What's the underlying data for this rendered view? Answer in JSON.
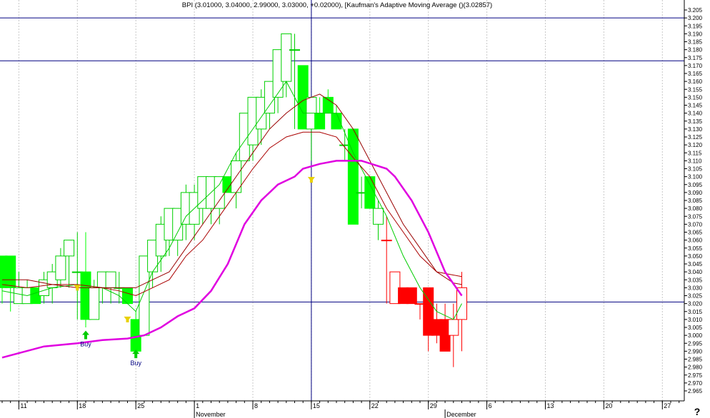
{
  "title": "BPI (3.01000, 3.04000, 2.99000, 3.03000, +0.02000), [Kaufman's Adaptive Moving Average ()(3.02857)",
  "help_glyph": "?",
  "colors": {
    "background": "#ffffff",
    "grid": "#c8c8c8",
    "crosshair": "#000080",
    "up_fill": "#ffffff",
    "up_outline": "#00d000",
    "green_fill": "#00ff00",
    "red_fill": "#ff0000",
    "red_outline": "#ff0000",
    "ma_fast": "#00cc00",
    "ma_mid": "#aa0000",
    "ma_slow": "#990000",
    "kama": "#e000e0",
    "buy_arrow": "#00cc00",
    "buy_text": "#000080",
    "marker": "#e8d000"
  },
  "chart_data": {
    "type": "candlestick",
    "title": "BPI (3.01000, 3.04000, 2.99000, 3.03000, +0.02000), [Kaufman's Adaptive Moving Average ()(3.02857)",
    "ylim": [
      2.962,
      3.213
    ],
    "ytick_labels": [
      "3.205",
      "3.200",
      "3.195",
      "3.190",
      "3.185",
      "3.180",
      "3.175",
      "3.170",
      "3.165",
      "3.160",
      "3.155",
      "3.150",
      "3.145",
      "3.140",
      "3.135",
      "3.130",
      "3.125",
      "3.120",
      "3.115",
      "3.110",
      "3.105",
      "3.100",
      "3.095",
      "3.090",
      "3.085",
      "3.080",
      "3.075",
      "3.070",
      "3.065",
      "3.060",
      "3.055",
      "3.050",
      "3.045",
      "3.040",
      "3.035",
      "3.030",
      "3.025",
      "3.020",
      "3.015",
      "3.010",
      "3.005",
      "3.000",
      "2.995",
      "2.990",
      "2.985",
      "2.980",
      "2.975",
      "2.970",
      "2.965"
    ],
    "ytick_values": [
      3.205,
      3.2,
      3.195,
      3.19,
      3.185,
      3.18,
      3.175,
      3.17,
      3.165,
      3.16,
      3.155,
      3.15,
      3.145,
      3.14,
      3.135,
      3.13,
      3.125,
      3.12,
      3.115,
      3.11,
      3.105,
      3.1,
      3.095,
      3.09,
      3.085,
      3.08,
      3.075,
      3.07,
      3.065,
      3.06,
      3.055,
      3.05,
      3.045,
      3.04,
      3.035,
      3.03,
      3.025,
      3.02,
      3.015,
      3.01,
      3.005,
      3.0,
      2.995,
      2.99,
      2.985,
      2.98,
      2.975,
      2.97,
      2.965
    ],
    "x_day_labels": [
      {
        "label": "11",
        "slot": 2
      },
      {
        "label": "18",
        "slot": 9
      },
      {
        "label": "25",
        "slot": 16
      },
      {
        "label": "1",
        "slot": 23
      },
      {
        "label": "8",
        "slot": 30
      },
      {
        "label": "15",
        "slot": 37
      },
      {
        "label": "22",
        "slot": 44
      },
      {
        "label": "29",
        "slot": 51
      },
      {
        "label": "6",
        "slot": 58
      },
      {
        "label": "13",
        "slot": 65
      },
      {
        "label": "20",
        "slot": 72
      },
      {
        "label": "27",
        "slot": 79
      }
    ],
    "x_month_labels": [
      {
        "label": "November",
        "slot": 23
      },
      {
        "label": "December",
        "slot": 53
      }
    ],
    "slot_count": 84,
    "candles": [
      {
        "slot": 0,
        "o": 3.03,
        "h": 3.05,
        "l": 3.02,
        "c": 3.05,
        "fill": "green"
      },
      {
        "slot": 1,
        "o": 3.03,
        "h": 3.05,
        "l": 3.015,
        "c": 3.05,
        "fill": "green"
      },
      {
        "slot": 2,
        "o": 3.02,
        "h": 3.04,
        "l": 3.02,
        "c": 3.03,
        "fill": "hollow"
      },
      {
        "slot": 3,
        "o": 3.02,
        "h": 3.035,
        "l": 3.02,
        "c": 3.03,
        "fill": "hollow"
      },
      {
        "slot": 4,
        "o": 3.03,
        "h": 3.03,
        "l": 3.02,
        "c": 3.02,
        "fill": "green"
      },
      {
        "slot": 5,
        "o": 3.025,
        "h": 3.04,
        "l": 3.02,
        "c": 3.035,
        "fill": "hollow"
      },
      {
        "slot": 6,
        "o": 3.03,
        "h": 3.045,
        "l": 3.02,
        "c": 3.04,
        "fill": "hollow"
      },
      {
        "slot": 7,
        "o": 3.035,
        "h": 3.055,
        "l": 3.03,
        "c": 3.05,
        "fill": "hollow"
      },
      {
        "slot": 8,
        "o": 3.05,
        "h": 3.06,
        "l": 3.03,
        "c": 3.06,
        "fill": "hollow"
      },
      {
        "slot": 9,
        "o": 3.04,
        "h": 3.065,
        "l": 3.01,
        "c": 3.04,
        "fill": "hollow"
      },
      {
        "slot": 10,
        "o": 3.04,
        "h": 3.065,
        "l": 3.005,
        "c": 3.01,
        "fill": "green"
      },
      {
        "slot": 11,
        "o": 3.01,
        "h": 3.035,
        "l": 3.01,
        "c": 3.03,
        "fill": "hollow"
      },
      {
        "slot": 12,
        "o": 3.03,
        "h": 3.04,
        "l": 3.02,
        "c": 3.04,
        "fill": "hollow"
      },
      {
        "slot": 13,
        "o": 3.03,
        "h": 3.04,
        "l": 3.02,
        "c": 3.04,
        "fill": "hollow"
      },
      {
        "slot": 14,
        "o": 3.03,
        "h": 3.04,
        "l": 3.02,
        "c": 3.03,
        "fill": "hollow"
      },
      {
        "slot": 15,
        "o": 3.03,
        "h": 3.03,
        "l": 3.02,
        "c": 3.02,
        "fill": "green"
      },
      {
        "slot": 16,
        "o": 3.01,
        "h": 3.015,
        "l": 2.99,
        "c": 2.99,
        "fill": "green"
      },
      {
        "slot": 17,
        "o": 3.0,
        "h": 3.05,
        "l": 3.0,
        "c": 3.05,
        "fill": "hollow"
      },
      {
        "slot": 18,
        "o": 3.04,
        "h": 3.06,
        "l": 3.03,
        "c": 3.06,
        "fill": "hollow"
      },
      {
        "slot": 19,
        "o": 3.05,
        "h": 3.075,
        "l": 3.04,
        "c": 3.07,
        "fill": "hollow"
      },
      {
        "slot": 20,
        "o": 3.06,
        "h": 3.08,
        "l": 3.05,
        "c": 3.08,
        "fill": "hollow"
      },
      {
        "slot": 21,
        "o": 3.06,
        "h": 3.08,
        "l": 3.05,
        "c": 3.08,
        "fill": "hollow"
      },
      {
        "slot": 22,
        "o": 3.07,
        "h": 3.095,
        "l": 3.06,
        "c": 3.09,
        "fill": "hollow"
      },
      {
        "slot": 23,
        "o": 3.07,
        "h": 3.095,
        "l": 3.06,
        "c": 3.09,
        "fill": "hollow"
      },
      {
        "slot": 24,
        "o": 3.08,
        "h": 3.1,
        "l": 3.07,
        "c": 3.1,
        "fill": "hollow"
      },
      {
        "slot": 25,
        "o": 3.08,
        "h": 3.1,
        "l": 3.07,
        "c": 3.1,
        "fill": "hollow"
      },
      {
        "slot": 26,
        "o": 3.08,
        "h": 3.1,
        "l": 3.07,
        "c": 3.1,
        "fill": "hollow"
      },
      {
        "slot": 27,
        "o": 3.09,
        "h": 3.1,
        "l": 3.09,
        "c": 3.1,
        "fill": "green"
      },
      {
        "slot": 28,
        "o": 3.09,
        "h": 3.115,
        "l": 3.08,
        "c": 3.11,
        "fill": "hollow"
      },
      {
        "slot": 29,
        "o": 3.11,
        "h": 3.14,
        "l": 3.11,
        "c": 3.14,
        "fill": "hollow"
      },
      {
        "slot": 30,
        "o": 3.12,
        "h": 3.15,
        "l": 3.11,
        "c": 3.15,
        "fill": "hollow"
      },
      {
        "slot": 31,
        "o": 3.13,
        "h": 3.155,
        "l": 3.12,
        "c": 3.15,
        "fill": "hollow"
      },
      {
        "slot": 32,
        "o": 3.14,
        "h": 3.16,
        "l": 3.13,
        "c": 3.16,
        "fill": "hollow"
      },
      {
        "slot": 33,
        "o": 3.15,
        "h": 3.18,
        "l": 3.14,
        "c": 3.18,
        "fill": "hollow"
      },
      {
        "slot": 34,
        "o": 3.16,
        "h": 3.19,
        "l": 3.15,
        "c": 3.19,
        "fill": "hollow"
      },
      {
        "slot": 35,
        "o": 3.18,
        "h": 3.19,
        "l": 3.13,
        "c": 3.18,
        "fill": "hollow"
      },
      {
        "slot": 36,
        "o": 3.17,
        "h": 3.17,
        "l": 3.13,
        "c": 3.13,
        "fill": "green"
      },
      {
        "slot": 37,
        "o": 3.15,
        "h": 3.15,
        "l": 3.11,
        "c": 3.13,
        "fill": "hollow"
      },
      {
        "slot": 38,
        "o": 3.14,
        "h": 3.15,
        "l": 3.13,
        "c": 3.13,
        "fill": "green"
      },
      {
        "slot": 39,
        "o": 3.15,
        "h": 3.155,
        "l": 3.14,
        "c": 3.14,
        "fill": "green"
      },
      {
        "slot": 40,
        "o": 3.14,
        "h": 3.145,
        "l": 3.13,
        "c": 3.13,
        "fill": "green"
      },
      {
        "slot": 41,
        "o": 3.12,
        "h": 3.13,
        "l": 3.11,
        "c": 3.12,
        "fill": "hollow"
      },
      {
        "slot": 42,
        "o": 3.13,
        "h": 3.13,
        "l": 3.07,
        "c": 3.07,
        "fill": "green"
      },
      {
        "slot": 43,
        "o": 3.09,
        "h": 3.1,
        "l": 3.08,
        "c": 3.09,
        "fill": "hollow"
      },
      {
        "slot": 44,
        "o": 3.1,
        "h": 3.1,
        "l": 3.08,
        "c": 3.08,
        "fill": "green"
      },
      {
        "slot": 45,
        "o": 3.07,
        "h": 3.085,
        "l": 3.06,
        "c": 3.08,
        "fill": "hollow"
      },
      {
        "slot": 46,
        "o": 3.06,
        "h": 3.075,
        "l": 3.02,
        "c": 3.06,
        "fill": "red"
      },
      {
        "slot": 47,
        "o": 3.04,
        "h": 3.04,
        "l": 3.02,
        "c": 3.02,
        "fill": "hollow_red"
      },
      {
        "slot": 48,
        "o": 3.03,
        "h": 3.03,
        "l": 3.02,
        "c": 3.02,
        "fill": "red"
      },
      {
        "slot": 49,
        "o": 3.03,
        "h": 3.03,
        "l": 3.02,
        "c": 3.02,
        "fill": "red"
      },
      {
        "slot": 50,
        "o": 3.02,
        "h": 3.02,
        "l": 3.01,
        "c": 3.02,
        "fill": "red"
      },
      {
        "slot": 51,
        "o": 3.03,
        "h": 3.03,
        "l": 2.99,
        "c": 3.0,
        "fill": "red"
      },
      {
        "slot": 52,
        "o": 3.01,
        "h": 3.02,
        "l": 2.995,
        "c": 3.0,
        "fill": "red"
      },
      {
        "slot": 53,
        "o": 3.01,
        "h": 3.02,
        "l": 2.99,
        "c": 2.99,
        "fill": "red"
      },
      {
        "slot": 54,
        "o": 3.0,
        "h": 3.02,
        "l": 2.98,
        "c": 3.01,
        "fill": "hollow_red"
      },
      {
        "slot": 55,
        "o": 3.01,
        "h": 3.04,
        "l": 2.99,
        "c": 3.03,
        "fill": "hollow_red"
      }
    ],
    "series": [
      {
        "key": "ma_fast",
        "values": [
          [
            0,
            3.028
          ],
          [
            3,
            3.025
          ],
          [
            6,
            3.03
          ],
          [
            9,
            3.032
          ],
          [
            12,
            3.03
          ],
          [
            14,
            3.025
          ],
          [
            16,
            3.015
          ],
          [
            18,
            3.04
          ],
          [
            20,
            3.055
          ],
          [
            22,
            3.075
          ],
          [
            24,
            3.085
          ],
          [
            26,
            3.095
          ],
          [
            28,
            3.115
          ],
          [
            30,
            3.13
          ],
          [
            32,
            3.145
          ],
          [
            34,
            3.16
          ],
          [
            36,
            3.14
          ],
          [
            38,
            3.14
          ],
          [
            40,
            3.14
          ],
          [
            42,
            3.115
          ],
          [
            44,
            3.095
          ],
          [
            46,
            3.075
          ],
          [
            48,
            3.05
          ],
          [
            50,
            3.03
          ],
          [
            52,
            3.015
          ],
          [
            54,
            3.01
          ],
          [
            55,
            3.02
          ]
        ]
      },
      {
        "key": "ma_mid",
        "values": [
          [
            0,
            3.032
          ],
          [
            3,
            3.03
          ],
          [
            6,
            3.032
          ],
          [
            9,
            3.032
          ],
          [
            12,
            3.03
          ],
          [
            14,
            3.028
          ],
          [
            16,
            3.025
          ],
          [
            18,
            3.03
          ],
          [
            20,
            3.035
          ],
          [
            22,
            3.05
          ],
          [
            24,
            3.06
          ],
          [
            26,
            3.075
          ],
          [
            28,
            3.09
          ],
          [
            30,
            3.105
          ],
          [
            32,
            3.118
          ],
          [
            34,
            3.125
          ],
          [
            36,
            3.128
          ],
          [
            38,
            3.128
          ],
          [
            40,
            3.125
          ],
          [
            42,
            3.112
          ],
          [
            44,
            3.1
          ],
          [
            46,
            3.08
          ],
          [
            48,
            3.065
          ],
          [
            50,
            3.05
          ],
          [
            52,
            3.04
          ],
          [
            54,
            3.038
          ],
          [
            55,
            3.037
          ]
        ]
      },
      {
        "key": "ma_slow",
        "values": [
          [
            0,
            3.035
          ],
          [
            3,
            3.035
          ],
          [
            6,
            3.032
          ],
          [
            9,
            3.03
          ],
          [
            12,
            3.03
          ],
          [
            14,
            3.03
          ],
          [
            16,
            3.03
          ],
          [
            18,
            3.035
          ],
          [
            20,
            3.04
          ],
          [
            22,
            3.055
          ],
          [
            24,
            3.07
          ],
          [
            26,
            3.085
          ],
          [
            28,
            3.1
          ],
          [
            30,
            3.115
          ],
          [
            32,
            3.13
          ],
          [
            34,
            3.14
          ],
          [
            36,
            3.148
          ],
          [
            38,
            3.152
          ],
          [
            40,
            3.145
          ],
          [
            42,
            3.13
          ],
          [
            44,
            3.11
          ],
          [
            46,
            3.09
          ],
          [
            48,
            3.07
          ],
          [
            50,
            3.055
          ],
          [
            52,
            3.04
          ],
          [
            54,
            3.033
          ],
          [
            55,
            3.032
          ]
        ]
      },
      {
        "key": "kama",
        "values": [
          [
            0,
            2.986
          ],
          [
            5,
            2.993
          ],
          [
            9,
            2.995
          ],
          [
            12,
            2.997
          ],
          [
            15,
            2.998
          ],
          [
            17,
            3.0
          ],
          [
            19,
            3.005
          ],
          [
            21,
            3.012
          ],
          [
            23,
            3.017
          ],
          [
            25,
            3.028
          ],
          [
            27,
            3.045
          ],
          [
            29,
            3.07
          ],
          [
            31,
            3.085
          ],
          [
            33,
            3.095
          ],
          [
            35,
            3.1
          ],
          [
            36,
            3.105
          ],
          [
            38,
            3.108
          ],
          [
            40,
            3.11
          ],
          [
            43,
            3.11
          ],
          [
            46,
            3.105
          ],
          [
            47,
            3.1
          ],
          [
            49,
            3.085
          ],
          [
            51,
            3.065
          ],
          [
            53,
            3.04
          ],
          [
            55,
            3.025
          ]
        ]
      }
    ],
    "crosshair": {
      "slot": 37,
      "y1": 3.2,
      "y2": 3.173,
      "y3": 3.021
    },
    "buy_signals": [
      {
        "slot": 10,
        "price": 3.003,
        "label": "Buy"
      },
      {
        "slot": 16,
        "price": 2.991,
        "label": "Buy"
      }
    ],
    "markers": [
      {
        "slot": 9,
        "price": 3.03
      },
      {
        "slot": 15,
        "price": 3.01
      },
      {
        "slot": 37,
        "price": 3.098
      }
    ]
  }
}
